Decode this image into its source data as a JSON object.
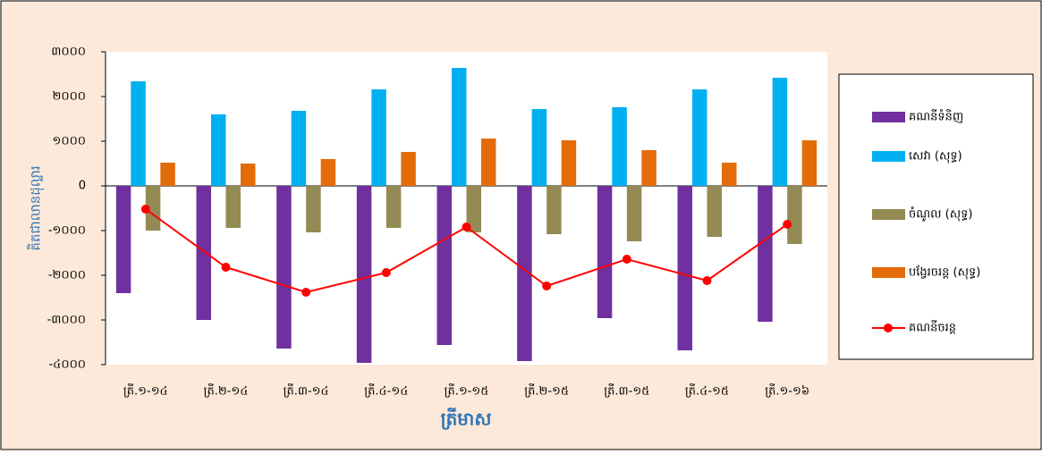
{
  "chart_data": {
    "type": "bar",
    "y_label": "គិតជាលានដុល្លារ",
    "x_label": "ត្រីមាស",
    "categories": [
      "ត្រី.១-១៤",
      "ត្រី.២-១៤",
      "ត្រី.៣-១៤",
      "ត្រី.៤-១៤",
      "ត្រី.១-១៥",
      "ត្រី.២-១៥",
      "ត្រី.៣-១៥",
      "ត្រី.៤-១៥",
      "ត្រី.១-១៦"
    ],
    "series": [
      {
        "name": "គណនីទំនិញ",
        "color": "#7030a0",
        "type": "bar",
        "values": [
          -2400,
          -3000,
          -3640,
          -3960,
          -3560,
          -3920,
          -2960,
          -3680,
          -3040
        ]
      },
      {
        "name": "សេវា (សុទ្ធ)",
        "color": "#00b0f0",
        "type": "bar",
        "values": [
          2340,
          1600,
          1680,
          2160,
          2640,
          1720,
          1760,
          2160,
          2420
        ]
      },
      {
        "name": "ចំណូល (សុទ្ធ)",
        "color": "#948a54",
        "type": "bar",
        "values": [
          -1000,
          -940,
          -1040,
          -940,
          -1040,
          -1080,
          -1240,
          -1140,
          -1300
        ]
      },
      {
        "name": "បង្វែរចរន្ត (សុទ្ធ)",
        "color": "#e36c09",
        "type": "bar",
        "values": [
          520,
          500,
          600,
          760,
          1060,
          1020,
          800,
          520,
          1020
        ]
      },
      {
        "name": "គណនីចរន្ត",
        "color": "#ff0000",
        "type": "line",
        "values": [
          -520,
          -1820,
          -2380,
          -1940,
          -920,
          -2240,
          -1640,
          -2120,
          -860
        ]
      }
    ],
    "ylim": [
      -4000,
      3000
    ],
    "yticks": [
      {
        "value": -4000,
        "label": "-៤០០០"
      },
      {
        "value": -3000,
        "label": "-៣០០០"
      },
      {
        "value": -2000,
        "label": "-២០០០"
      },
      {
        "value": -1000,
        "label": "-១០០០"
      },
      0,
      {
        "value": 1000,
        "label": "១០០០"
      },
      {
        "value": 2000,
        "label": "២០០០"
      },
      {
        "value": 3000,
        "label": "៣០០០"
      }
    ],
    "legend": "right"
  }
}
